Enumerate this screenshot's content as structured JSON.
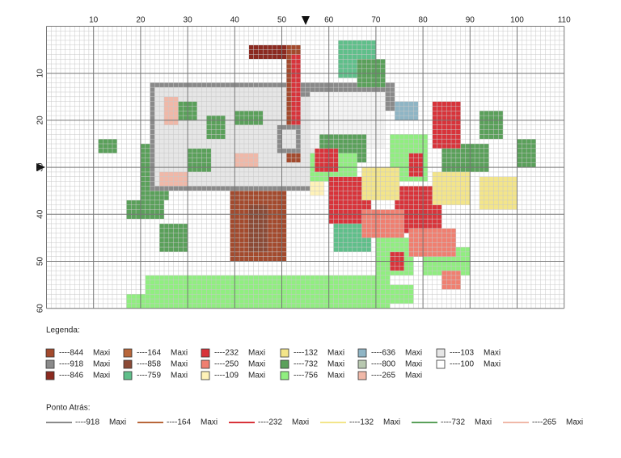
{
  "axis": {
    "top": [
      "10",
      "20",
      "30",
      "40",
      "50",
      "60",
      "70",
      "80",
      "90",
      "100",
      "110"
    ],
    "left": [
      "10",
      "20",
      "30",
      "40",
      "50",
      "60"
    ]
  },
  "legend": {
    "title": "Legenda:",
    "items": [
      {
        "code": "----844",
        "thread": "Maxi",
        "color": "#a34a2d"
      },
      {
        "code": "----918",
        "thread": "Maxi",
        "color": "#8a8a8a"
      },
      {
        "code": "----846",
        "thread": "Maxi",
        "color": "#8b2a20"
      },
      {
        "code": "----164",
        "thread": "Maxi",
        "color": "#b8663a"
      },
      {
        "code": "----858",
        "thread": "Maxi",
        "color": "#8b4a36"
      },
      {
        "code": "----759",
        "thread": "Maxi",
        "color": "#5fbf8a"
      },
      {
        "code": "----232",
        "thread": "Maxi",
        "color": "#d8333a"
      },
      {
        "code": "----250",
        "thread": "Maxi",
        "color": "#f07f70"
      },
      {
        "code": "----109",
        "thread": "Maxi",
        "color": "#fff2b8"
      },
      {
        "code": "----132",
        "thread": "Maxi",
        "color": "#f3e58a"
      },
      {
        "code": "----732",
        "thread": "Maxi",
        "color": "#5aa05a"
      },
      {
        "code": "----756",
        "thread": "Maxi",
        "color": "#90ee80"
      },
      {
        "code": "----636",
        "thread": "Maxi",
        "color": "#8fb5c5"
      },
      {
        "code": "----800",
        "thread": "Maxi",
        "color": "#b8c8b0"
      },
      {
        "code": "----265",
        "thread": "Maxi",
        "color": "#f0b8a8"
      },
      {
        "code": "----103",
        "thread": "Maxi",
        "color": "#e6e6e6"
      },
      {
        "code": "----100",
        "thread": "Maxi",
        "color": "#ffffff"
      }
    ]
  },
  "backstitch": {
    "title": "Ponto Atrás:",
    "items": [
      {
        "code": "----918",
        "thread": "Maxi",
        "color": "#8a8a8a"
      },
      {
        "code": "----164",
        "thread": "Maxi",
        "color": "#b8663a"
      },
      {
        "code": "----232",
        "thread": "Maxi",
        "color": "#d8333a"
      },
      {
        "code": "----132",
        "thread": "Maxi",
        "color": "#f3e58a"
      },
      {
        "code": "----732",
        "thread": "Maxi",
        "color": "#5aa05a"
      },
      {
        "code": "----265",
        "thread": "Maxi",
        "color": "#f0b8a8"
      }
    ]
  }
}
